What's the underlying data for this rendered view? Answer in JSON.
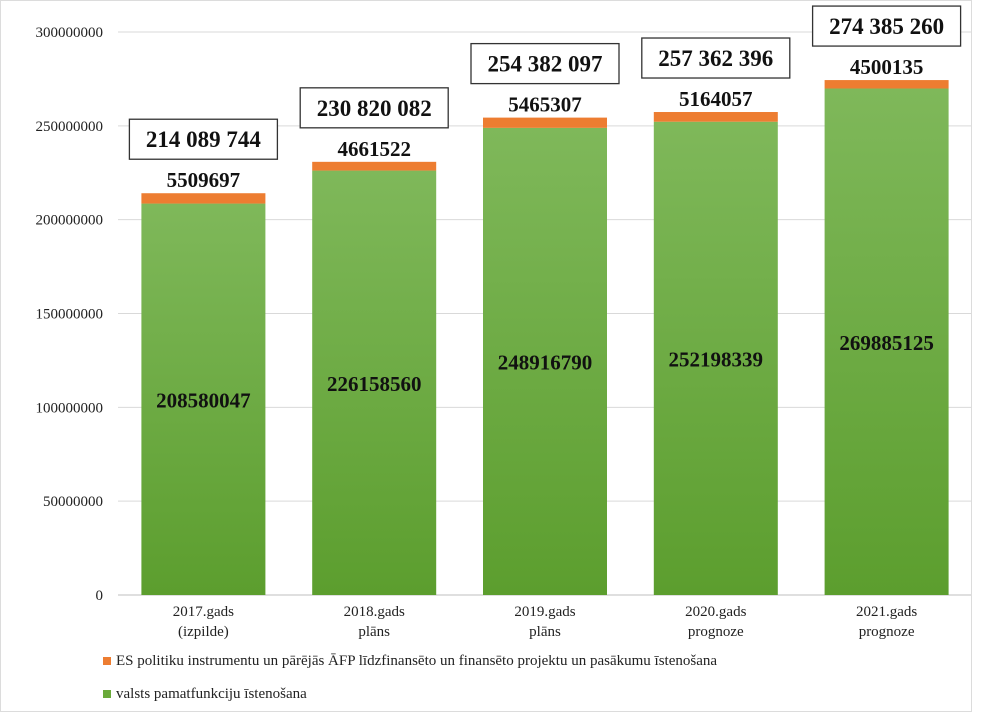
{
  "chart_data": {
    "type": "bar",
    "stacked": true,
    "categories": [
      [
        "2017.gads",
        "(izpilde)"
      ],
      [
        "2018.gads",
        "plāns"
      ],
      [
        "2019.gads",
        "plāns"
      ],
      [
        "2020.gads",
        "prognoze"
      ],
      [
        "2021.gads",
        "prognoze"
      ]
    ],
    "series": [
      {
        "name": "valsts pamatfunkciju īstenošana",
        "color": "#6aaa3a",
        "values": [
          208580047,
          226158560,
          248916790,
          252198339,
          269885125
        ],
        "labels": [
          "208580047",
          "226158560",
          "248916790",
          "252198339",
          "269885125"
        ]
      },
      {
        "name": "ES politiku instrumentu un pārējās ĀFP līdzfinansēto un finansēto projektu un pasākumu īstenošana",
        "color": "#ed7d31",
        "values": [
          5509697,
          4661522,
          5465307,
          5164057,
          4500135
        ],
        "labels": [
          "5509697",
          "4661522",
          "5465307",
          "5164057",
          "4500135"
        ]
      }
    ],
    "totals": [
      "214 089 744",
      "230 820 082",
      "254 382 097",
      "257 362 396",
      "274 385 260"
    ],
    "ylim": [
      0,
      300000000
    ],
    "yticks": [
      "0",
      "50000000",
      "100000000",
      "150000000",
      "200000000",
      "250000000",
      "300000000"
    ],
    "grid": true,
    "legend_position": "bottom-left",
    "title": "",
    "xlabel": "",
    "ylabel": ""
  }
}
